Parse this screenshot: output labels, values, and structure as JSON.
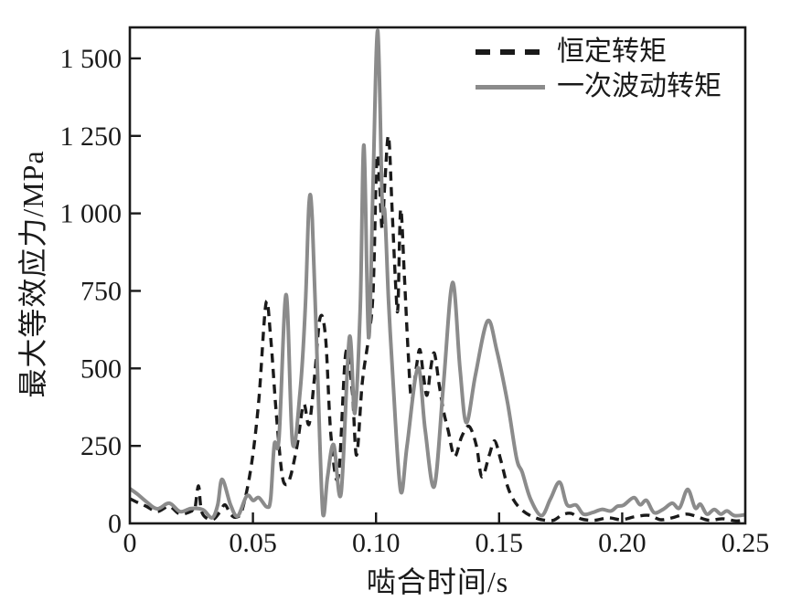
{
  "figure": {
    "background": "#ffffff",
    "frame_color": "#1a1a1a",
    "text_color": "#1a1a1a"
  },
  "chart_data": {
    "type": "line",
    "title": "",
    "xlabel": "啮合时间/s",
    "ylabel": "最大等效应力/MPa",
    "xlim": [
      0,
      0.25
    ],
    "ylim": [
      0,
      1600
    ],
    "grid": false,
    "legend_position": "top-right-inside",
    "x_ticks": [
      0,
      0.05,
      0.1,
      0.15,
      0.2,
      0.25
    ],
    "x_tick_labels": [
      "0",
      "0.05",
      "0.10",
      "0.15",
      "0.20",
      "0.25"
    ],
    "y_ticks": [
      0,
      250,
      500,
      750,
      1000,
      1250,
      1500
    ],
    "y_tick_labels": [
      "0",
      "250",
      "500",
      "750",
      "1 000",
      "1 250",
      "1 500"
    ],
    "series": [
      {
        "name": "恒定转矩",
        "style": "dashed",
        "color": "#1a1a1a",
        "width": 3.4,
        "points": [
          [
            0,
            80
          ],
          [
            0.003,
            68
          ],
          [
            0.0067,
            55
          ],
          [
            0.0111,
            38
          ],
          [
            0.016,
            55
          ],
          [
            0.0204,
            30
          ],
          [
            0.0253,
            40
          ],
          [
            0.0264,
            45
          ],
          [
            0.0279,
            121
          ],
          [
            0.0293,
            35
          ],
          [
            0.0334,
            12
          ],
          [
            0.0364,
            35
          ],
          [
            0.0386,
            60
          ],
          [
            0.0409,
            30
          ],
          [
            0.0431,
            20
          ],
          [
            0.0457,
            45
          ],
          [
            0.0494,
            190
          ],
          [
            0.0524,
            400
          ],
          [
            0.0553,
            710
          ],
          [
            0.0572,
            600
          ],
          [
            0.0594,
            363
          ],
          [
            0.0617,
            165
          ],
          [
            0.0635,
            125
          ],
          [
            0.0654,
            156
          ],
          [
            0.068,
            254
          ],
          [
            0.0706,
            384
          ],
          [
            0.0728,
            320
          ],
          [
            0.0751,
            480
          ],
          [
            0.0773,
            664
          ],
          [
            0.0795,
            600
          ],
          [
            0.0817,
            283
          ],
          [
            0.0847,
            150
          ],
          [
            0.0877,
            549
          ],
          [
            0.0903,
            430
          ],
          [
            0.0921,
            220
          ],
          [
            0.0944,
            452
          ],
          [
            0.097,
            600
          ],
          [
            0.0988,
            747
          ],
          [
            0.1003,
            1170
          ],
          [
            0.1014,
            1100
          ],
          [
            0.1025,
            950
          ],
          [
            0.1036,
            1100
          ],
          [
            0.1051,
            1249
          ],
          [
            0.1066,
            1000
          ],
          [
            0.1081,
            750
          ],
          [
            0.1089,
            700
          ],
          [
            0.11,
            1013
          ],
          [
            0.1115,
            800
          ],
          [
            0.113,
            560
          ],
          [
            0.1144,
            400
          ],
          [
            0.1163,
            500
          ],
          [
            0.1178,
            561
          ],
          [
            0.1192,
            480
          ],
          [
            0.1207,
            413
          ],
          [
            0.1222,
            500
          ],
          [
            0.1237,
            549
          ],
          [
            0.1256,
            450
          ],
          [
            0.1274,
            363
          ],
          [
            0.1293,
            300
          ],
          [
            0.1319,
            216
          ],
          [
            0.1348,
            280
          ],
          [
            0.1378,
            313
          ],
          [
            0.1408,
            250
          ],
          [
            0.143,
            150
          ],
          [
            0.146,
            220
          ],
          [
            0.1482,
            266
          ],
          [
            0.1508,
            200
          ],
          [
            0.1534,
            120
          ],
          [
            0.156,
            74
          ],
          [
            0.159,
            45
          ],
          [
            0.1627,
            25
          ],
          [
            0.1672,
            12
          ],
          [
            0.172,
            10
          ],
          [
            0.1757,
            28
          ],
          [
            0.1794,
            32
          ],
          [
            0.1831,
            15
          ],
          [
            0.1887,
            10
          ],
          [
            0.1943,
            18
          ],
          [
            0.1998,
            12
          ],
          [
            0.2054,
            22
          ],
          [
            0.211,
            26
          ],
          [
            0.2155,
            12
          ],
          [
            0.2203,
            18
          ],
          [
            0.2259,
            30
          ],
          [
            0.2303,
            22
          ],
          [
            0.2352,
            10
          ],
          [
            0.2407,
            15
          ],
          [
            0.2463,
            8
          ],
          [
            0.25,
            12
          ]
        ]
      },
      {
        "name": "一次波动转矩",
        "style": "solid",
        "color": "#8b8b8b",
        "width": 4,
        "points": [
          [
            0,
            112
          ],
          [
            0.003,
            95
          ],
          [
            0.0067,
            70
          ],
          [
            0.0111,
            47
          ],
          [
            0.016,
            65
          ],
          [
            0.0204,
            38
          ],
          [
            0.0248,
            48
          ],
          [
            0.0297,
            44
          ],
          [
            0.0334,
            18
          ],
          [
            0.0357,
            60
          ],
          [
            0.0375,
            142
          ],
          [
            0.0409,
            60
          ],
          [
            0.0438,
            24
          ],
          [
            0.0475,
            89
          ],
          [
            0.0501,
            74
          ],
          [
            0.0524,
            83
          ],
          [
            0.0557,
            53
          ],
          [
            0.0572,
            80
          ],
          [
            0.0587,
            255
          ],
          [
            0.0606,
            275
          ],
          [
            0.0635,
            738
          ],
          [
            0.0661,
            260
          ],
          [
            0.0691,
            420
          ],
          [
            0.0713,
            700
          ],
          [
            0.0728,
            1034
          ],
          [
            0.0741,
            980
          ],
          [
            0.0762,
            500
          ],
          [
            0.0784,
            30
          ],
          [
            0.0803,
            150
          ],
          [
            0.0828,
            254
          ],
          [
            0.0858,
            97
          ],
          [
            0.0892,
            600
          ],
          [
            0.0914,
            355
          ],
          [
            0.0936,
            700
          ],
          [
            0.0951,
            1220
          ],
          [
            0.097,
            600
          ],
          [
            0.0988,
            1100
          ],
          [
            0.1007,
            1590
          ],
          [
            0.1025,
            1042
          ],
          [
            0.1036,
            1000
          ],
          [
            0.1051,
            718
          ],
          [
            0.107,
            450
          ],
          [
            0.11,
            105
          ],
          [
            0.1126,
            250
          ],
          [
            0.117,
            502
          ],
          [
            0.12,
            300
          ],
          [
            0.1237,
            120
          ],
          [
            0.1274,
            450
          ],
          [
            0.1311,
            777
          ],
          [
            0.1341,
            500
          ],
          [
            0.1367,
            325
          ],
          [
            0.1404,
            480
          ],
          [
            0.1453,
            653
          ],
          [
            0.149,
            560
          ],
          [
            0.1534,
            390
          ],
          [
            0.1571,
            210
          ],
          [
            0.1594,
            165
          ],
          [
            0.1627,
            80
          ],
          [
            0.1672,
            25
          ],
          [
            0.1709,
            80
          ],
          [
            0.1746,
            133
          ],
          [
            0.1776,
            60
          ],
          [
            0.1813,
            59
          ],
          [
            0.1842,
            30
          ],
          [
            0.188,
            35
          ],
          [
            0.1917,
            45
          ],
          [
            0.1954,
            40
          ],
          [
            0.198,
            55
          ],
          [
            0.2006,
            59
          ],
          [
            0.2047,
            83
          ],
          [
            0.2073,
            60
          ],
          [
            0.2099,
            74
          ],
          [
            0.2129,
            35
          ],
          [
            0.2166,
            45
          ],
          [
            0.2203,
            65
          ],
          [
            0.2233,
            50
          ],
          [
            0.2266,
            110
          ],
          [
            0.2296,
            50
          ],
          [
            0.2318,
            62
          ],
          [
            0.2344,
            30
          ],
          [
            0.2374,
            45
          ],
          [
            0.24,
            30
          ],
          [
            0.2426,
            40
          ],
          [
            0.2456,
            25
          ],
          [
            0.25,
            28
          ]
        ]
      }
    ]
  }
}
